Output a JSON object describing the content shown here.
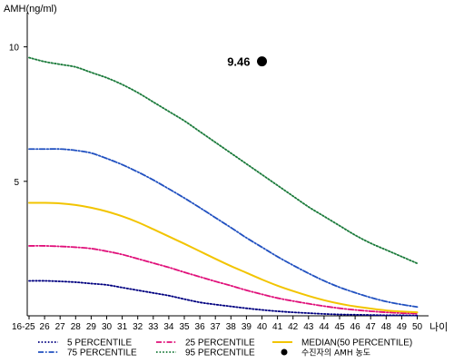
{
  "chart_data": {
    "type": "line",
    "title": "",
    "ylabel": "AMH(ng/ml)",
    "xlabel": "나이",
    "ylim": [
      0,
      11
    ],
    "y_ticks": [
      5,
      10
    ],
    "categories": [
      "16-25",
      "26",
      "27",
      "28",
      "29",
      "30",
      "31",
      "32",
      "33",
      "34",
      "35",
      "36",
      "37",
      "38",
      "39",
      "40",
      "41",
      "42",
      "43",
      "44",
      "45",
      "46",
      "47",
      "48",
      "49",
      "50"
    ],
    "series": [
      {
        "name": "5 PERCENTILE",
        "color": "#000080",
        "style": "dotted",
        "values": [
          1.3,
          1.3,
          1.28,
          1.25,
          1.2,
          1.15,
          1.05,
          0.95,
          0.85,
          0.75,
          0.62,
          0.5,
          0.42,
          0.35,
          0.28,
          0.22,
          0.17,
          0.13,
          0.1,
          0.07,
          0.05,
          0.04,
          0.03,
          0.02,
          0.02,
          0.01
        ]
      },
      {
        "name": "25 PERCENTILE",
        "color": "#e0107a",
        "style": "dashdot",
        "values": [
          2.6,
          2.6,
          2.58,
          2.55,
          2.5,
          2.4,
          2.28,
          2.12,
          1.96,
          1.8,
          1.62,
          1.45,
          1.28,
          1.12,
          0.95,
          0.8,
          0.66,
          0.55,
          0.45,
          0.36,
          0.28,
          0.22,
          0.17,
          0.13,
          0.1,
          0.08
        ]
      },
      {
        "name": "MEDIAN(50 PERCENTILE)",
        "color": "#f2c400",
        "style": "solid",
        "values": [
          4.2,
          4.2,
          4.18,
          4.12,
          4.02,
          3.88,
          3.7,
          3.48,
          3.22,
          2.95,
          2.68,
          2.4,
          2.12,
          1.85,
          1.6,
          1.35,
          1.12,
          0.92,
          0.74,
          0.58,
          0.45,
          0.35,
          0.27,
          0.2,
          0.16,
          0.13
        ]
      },
      {
        "name": "75 PERCENTILE",
        "color": "#2050c0",
        "style": "dashdot",
        "values": [
          6.2,
          6.2,
          6.2,
          6.15,
          6.05,
          5.85,
          5.62,
          5.35,
          5.05,
          4.72,
          4.38,
          4.02,
          3.65,
          3.28,
          2.9,
          2.55,
          2.2,
          1.88,
          1.58,
          1.3,
          1.06,
          0.86,
          0.68,
          0.53,
          0.42,
          0.33
        ]
      },
      {
        "name": "95 PERCENTILE",
        "color": "#1a7a3a",
        "style": "dotted",
        "values": [
          9.6,
          9.45,
          9.35,
          9.25,
          9.05,
          8.85,
          8.6,
          8.3,
          7.95,
          7.6,
          7.25,
          6.85,
          6.45,
          6.05,
          5.65,
          5.25,
          4.85,
          4.45,
          4.05,
          3.7,
          3.35,
          3.0,
          2.7,
          2.45,
          2.2,
          1.95
        ]
      }
    ],
    "marker": {
      "label": "수진자의 AMH 농도",
      "x": "40",
      "y": 9.46,
      "text": "9.46",
      "color": "#000000"
    },
    "legend_position": "bottom"
  }
}
